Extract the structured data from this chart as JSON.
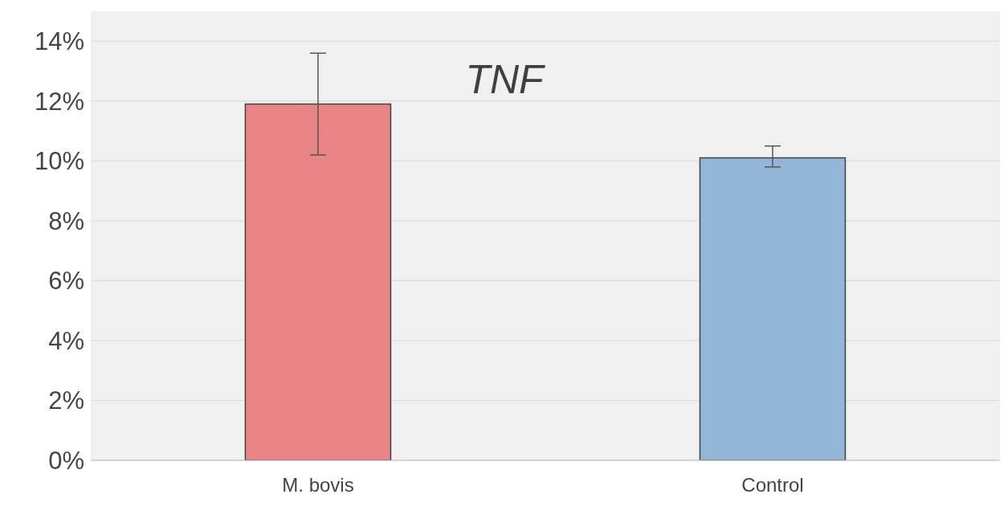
{
  "chart_data": {
    "type": "bar",
    "title": "TNF",
    "categories": [
      "M. bovis",
      "Control"
    ],
    "values": [
      11.9,
      10.1
    ],
    "colors": [
      "#e98585",
      "#93b6d6"
    ],
    "errors": [
      [
        10.2,
        13.6
      ],
      [
        9.8,
        10.5
      ]
    ],
    "ylim": [
      0,
      15
    ],
    "yticks": [
      {
        "value": 0,
        "label": "0%"
      },
      {
        "value": 2,
        "label": "2%"
      },
      {
        "value": 4,
        "label": "4%"
      },
      {
        "value": 6,
        "label": "6%"
      },
      {
        "value": 8,
        "label": "8%"
      },
      {
        "value": 10,
        "label": "10%"
      },
      {
        "value": 12,
        "label": "12%"
      },
      {
        "value": 14,
        "label": "14%"
      }
    ],
    "grid": "y",
    "legend": false
  }
}
